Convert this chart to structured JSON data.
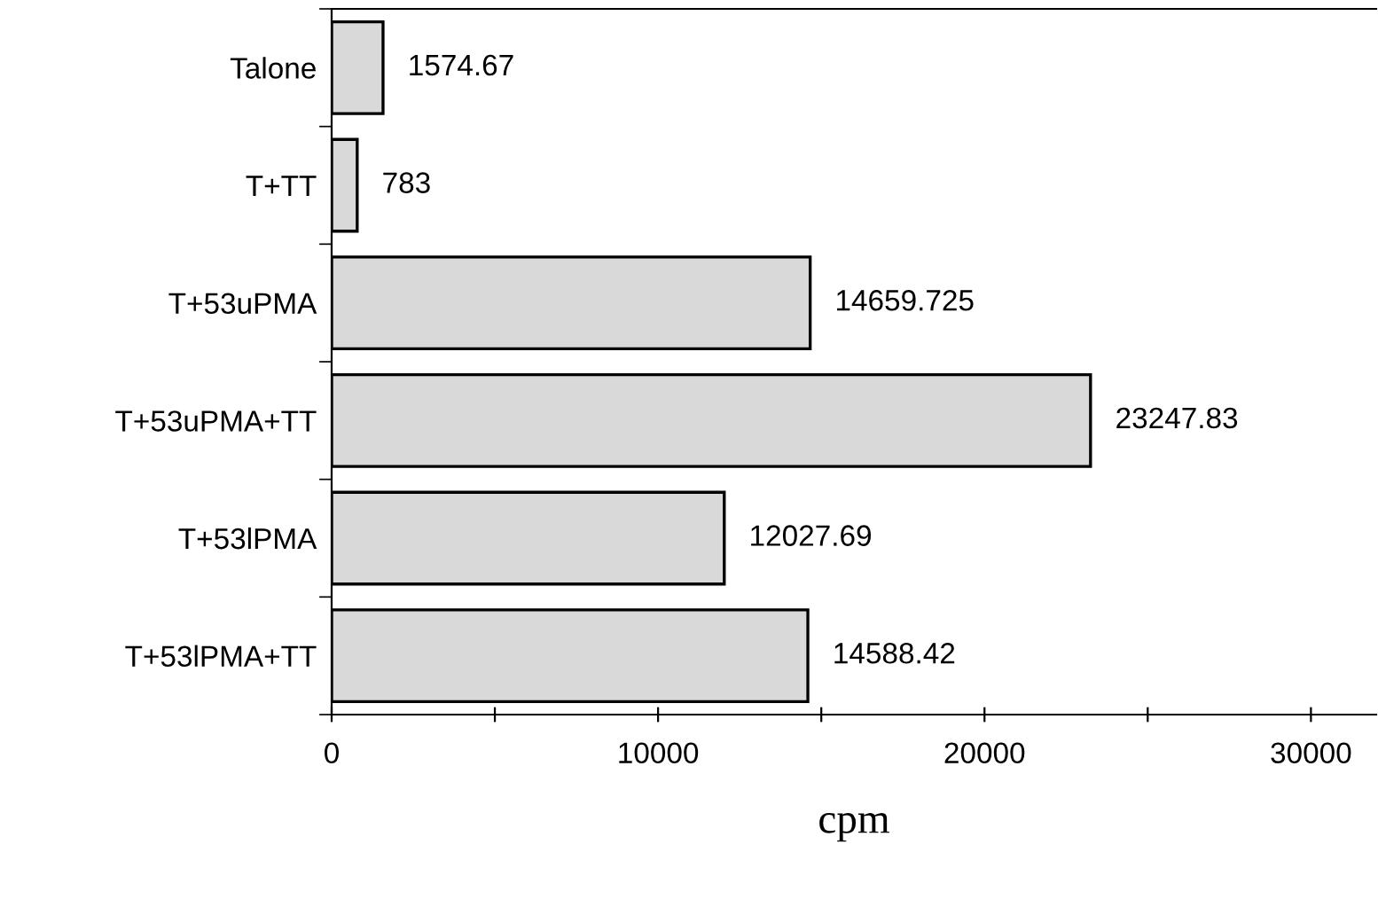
{
  "chart_data": {
    "type": "bar",
    "orientation": "horizontal",
    "xlabel": "cpm",
    "categories": [
      "Talone",
      "T+TT",
      "T+53uPMA",
      "T+53uPMA+TT",
      "T+53lPMA",
      "T+53lPMA+TT"
    ],
    "values": [
      1574.67,
      783,
      14659.725,
      23247.83,
      12027.69,
      14588.42
    ],
    "color": "#d9d9d9",
    "data_labels": true,
    "xlim": [
      0,
      32000
    ],
    "xticks": [
      0,
      {
        "value": 5000,
        "label": null
      },
      10000,
      {
        "value": 15000,
        "label": null
      },
      20000,
      {
        "value": 25000,
        "label": null
      },
      30000
    ],
    "grid": false,
    "legend": false
  }
}
